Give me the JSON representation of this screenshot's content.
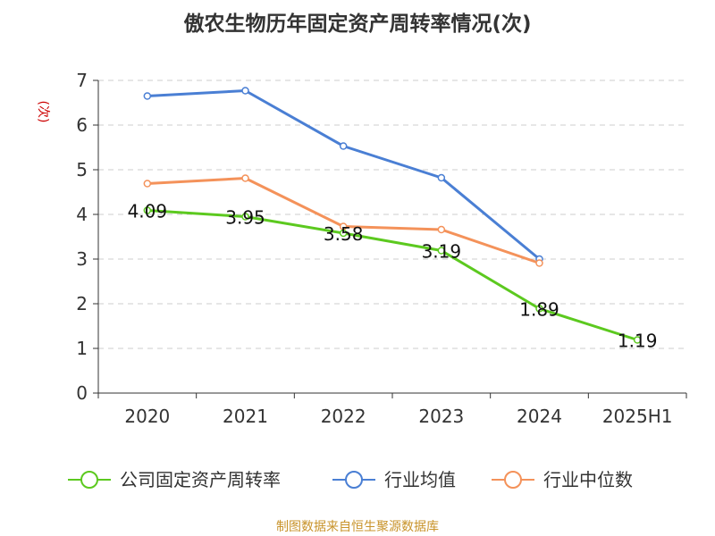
{
  "chart_data": {
    "type": "line",
    "title": "傲农生物历年固定资产周转率情况(次)",
    "ylabel": "(次)",
    "xlabel": "",
    "categories": [
      "2020",
      "2021",
      "2022",
      "2023",
      "2024",
      "2025H1"
    ],
    "ylim": [
      0,
      7
    ],
    "yticks": [
      0,
      1,
      2,
      3,
      4,
      5,
      6,
      7
    ],
    "grid": true,
    "legend_position": "bottom",
    "series": [
      {
        "name": "公司固定资产周转率",
        "color": "#5cc91f",
        "values": [
          4.09,
          3.95,
          3.58,
          3.19,
          1.89,
          1.19
        ],
        "labels": [
          "4.09",
          "3.95",
          "3.58",
          "3.19",
          "1.89",
          "1.19"
        ]
      },
      {
        "name": "行业均值",
        "color": "#4a7fd4",
        "values": [
          6.65,
          6.77,
          5.53,
          4.82,
          3.0,
          null
        ]
      },
      {
        "name": "行业中位数",
        "color": "#f4925a",
        "values": [
          4.69,
          4.81,
          3.73,
          3.66,
          2.91,
          null
        ]
      }
    ],
    "source": "制图数据来自恒生聚源数据库"
  }
}
